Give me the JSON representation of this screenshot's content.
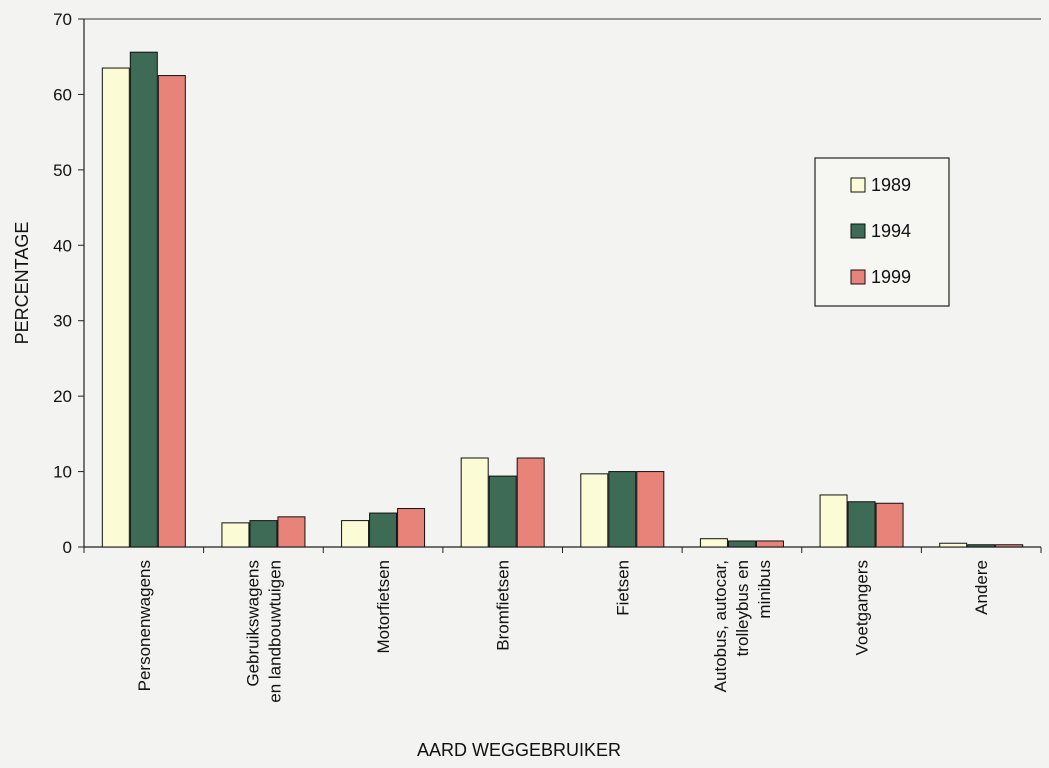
{
  "chart_data": {
    "type": "bar",
    "xlabel": "AARD WEGGEBRUIKER",
    "ylabel": "PERCENTAGE",
    "ylim": [
      0,
      70
    ],
    "yticks": [
      0,
      10,
      20,
      30,
      40,
      50,
      60,
      70
    ],
    "grid": false,
    "legend_position": "right",
    "categories": [
      [
        "Personenwagens"
      ],
      [
        "Gebruikswagens",
        "en landbouwtuigen"
      ],
      [
        "Motorfietsen"
      ],
      [
        "Bromfietsen"
      ],
      [
        "Fietsen"
      ],
      [
        "Autobus, autocar,",
        "trolleybus en",
        "minibus"
      ],
      [
        "Voetgangers"
      ],
      [
        "Andere"
      ]
    ],
    "series": [
      {
        "name": "1989",
        "color": "#fbfbd6",
        "values": [
          63.5,
          3.2,
          3.5,
          11.8,
          9.7,
          1.1,
          6.9,
          0.5
        ]
      },
      {
        "name": "1994",
        "color": "#3d6b55",
        "values": [
          65.6,
          3.5,
          4.5,
          9.4,
          10.0,
          0.8,
          6.0,
          0.3
        ]
      },
      {
        "name": "1999",
        "color": "#e8837a",
        "values": [
          62.5,
          4.0,
          5.1,
          11.8,
          10.0,
          0.8,
          5.8,
          0.3
        ]
      }
    ]
  }
}
